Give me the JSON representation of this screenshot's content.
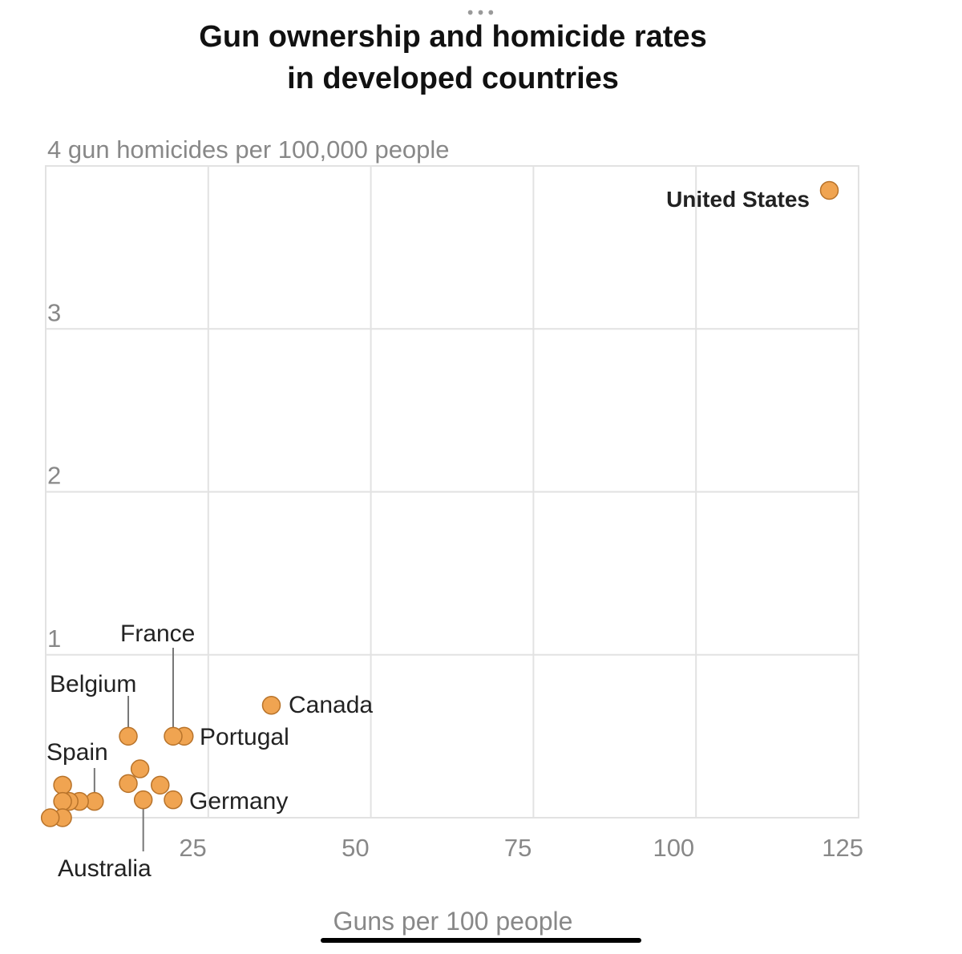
{
  "window": {
    "more_icon": "more-horizontal-icon",
    "more_glyph": "•••",
    "home_indicator": "home-indicator-bar"
  },
  "colors": {
    "point_fill": "#f0a451",
    "point_stroke": "#b8732a",
    "grid": "#e2e2e2",
    "axis_text": "#888888",
    "title_text": "#111111",
    "label_text": "#222222",
    "leader_line": "#777777"
  },
  "chart_data": {
    "type": "scatter",
    "title": "Gun ownership and homicide rates in developed countries",
    "title_lines": [
      "Gun ownership and homicide rates",
      "in developed countries"
    ],
    "ylabel": "gun homicides per 100,000 people",
    "xlabel": "Guns per 100 people",
    "xlim": [
      0,
      125
    ],
    "ylim": [
      0,
      4
    ],
    "x_ticks": [
      25,
      50,
      75,
      100,
      125
    ],
    "x_tick_labels": [
      "25",
      "50",
      "75",
      "100",
      "125"
    ],
    "y_ticks": [
      1,
      2,
      3,
      4
    ],
    "y_tick_labels": [
      "1",
      "2",
      "3",
      "4 gun homicides per 100,000 people"
    ],
    "grid": true,
    "points": [
      {
        "x": 120.5,
        "y": 3.85,
        "label": "United States",
        "bold": true
      },
      {
        "x": 34.7,
        "y": 0.69,
        "label": "Canada"
      },
      {
        "x": 21.3,
        "y": 0.5,
        "label": "Portugal"
      },
      {
        "x": 19.6,
        "y": 0.5,
        "label": "France"
      },
      {
        "x": 12.7,
        "y": 0.5,
        "label": "Belgium"
      },
      {
        "x": 19.6,
        "y": 0.11,
        "label": "Germany"
      },
      {
        "x": 15.0,
        "y": 0.11,
        "label": "Australia"
      },
      {
        "x": 7.5,
        "y": 0.1,
        "label": "Spain"
      },
      {
        "x": 14.5,
        "y": 0.3
      },
      {
        "x": 12.7,
        "y": 0.21
      },
      {
        "x": 17.6,
        "y": 0.2
      },
      {
        "x": 5.2,
        "y": 0.1
      },
      {
        "x": 3.6,
        "y": 0.1
      },
      {
        "x": 2.6,
        "y": 0.2
      },
      {
        "x": 2.6,
        "y": 0.1
      },
      {
        "x": 2.6,
        "y": 0.0
      },
      {
        "x": 0.7,
        "y": 0.0
      }
    ]
  }
}
